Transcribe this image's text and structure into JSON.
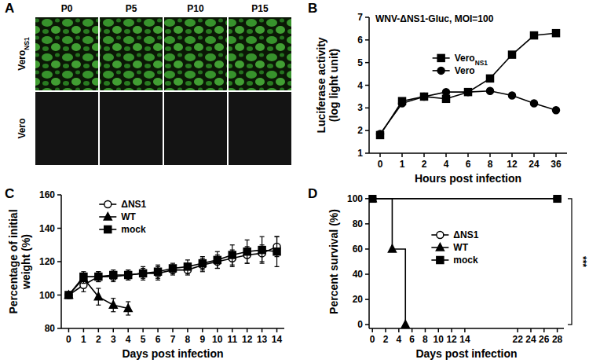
{
  "image_panel": {
    "panel": "A",
    "columns": [
      "P0",
      "P5",
      "P10",
      "P15"
    ],
    "rows": [
      {
        "label": "VeroNS1",
        "subscript": "NS1"
      },
      {
        "label": "Vero"
      }
    ]
  },
  "chart_data": [
    {
      "type": "line",
      "panel": "B",
      "title": "WNV-ΔNS1-Gluc, MOI=100",
      "x_label": "Hours post infection",
      "y_label": "Luciferase activity\n(log light unit)",
      "categories": [
        "0",
        "1",
        "2",
        "4",
        "6",
        "8",
        "12",
        "24",
        "36"
      ],
      "ylim": [
        1,
        7
      ],
      "yticks": [
        1,
        2,
        3,
        4,
        5,
        6,
        7
      ],
      "legend": "center",
      "series": [
        {
          "name": "VeroNS1",
          "subscript": "NS1",
          "color": "#000000",
          "marker": "square",
          "line_style": "solid",
          "values": [
            1.8,
            3.3,
            3.5,
            3.4,
            3.7,
            4.3,
            5.35,
            6.2,
            6.3
          ]
        },
        {
          "name": "Vero",
          "color": "#000000",
          "marker": "circle",
          "line_style": "solid",
          "values": [
            1.85,
            3.2,
            3.5,
            3.7,
            3.7,
            3.75,
            3.55,
            3.2,
            2.9
          ]
        }
      ]
    },
    {
      "type": "line",
      "panel": "C",
      "x_label": "Days post infection",
      "y_label": "Percentage of initial\nweight (%)",
      "xlim": [
        -0.5,
        14.5
      ],
      "xticks": [
        0,
        1,
        2,
        3,
        4,
        5,
        6,
        7,
        8,
        9,
        10,
        11,
        12,
        13,
        14
      ],
      "ylim": [
        80,
        160
      ],
      "yticks": [
        80,
        100,
        120,
        140,
        160
      ],
      "legend": "upper left",
      "series": [
        {
          "name": "ΔNS1",
          "color": "#000000",
          "marker": "open_circle",
          "line_style": "solid",
          "x": [
            0,
            1,
            2,
            3,
            4,
            5,
            6,
            7,
            8,
            9,
            10,
            11,
            12,
            13,
            14
          ],
          "values": [
            100,
            106,
            111,
            111,
            112,
            113,
            113,
            115,
            115,
            118,
            120,
            122,
            124,
            125,
            129
          ],
          "errors": [
            1,
            4,
            3,
            3,
            3,
            4,
            4,
            3,
            3,
            4,
            4,
            5,
            5,
            5,
            6
          ]
        },
        {
          "name": "WT",
          "color": "#000000",
          "marker": "triangle",
          "line_style": "solid",
          "x": [
            0,
            1,
            2,
            3,
            4
          ],
          "values": [
            100,
            110,
            99,
            94,
            92
          ],
          "errors": [
            1,
            3,
            5,
            4,
            4
          ]
        },
        {
          "name": "mock",
          "color": "#000000",
          "marker": "square",
          "line_style": "solid",
          "x": [
            0,
            1,
            2,
            3,
            4,
            5,
            6,
            7,
            8,
            9,
            10,
            11,
            12,
            13,
            14
          ],
          "values": [
            100,
            111,
            111,
            112,
            112,
            113,
            114,
            116,
            117,
            119,
            121,
            124,
            126,
            127,
            126
          ],
          "errors": [
            1,
            3,
            3,
            3,
            3,
            3,
            4,
            3,
            4,
            4,
            5,
            6,
            7,
            8,
            9
          ]
        }
      ]
    },
    {
      "type": "line",
      "panel": "D",
      "x_label": "Days post infection",
      "y_label": "Percent survival (%)",
      "xlim": [
        -0.5,
        29
      ],
      "xticks": [
        0,
        2,
        4,
        6,
        8,
        10,
        12,
        14,
        22,
        24,
        26,
        28
      ],
      "ylim": [
        -3,
        103
      ],
      "yticks": [
        0,
        20,
        40,
        60,
        80,
        100
      ],
      "legend": "center",
      "annotations": [
        "***"
      ],
      "series": [
        {
          "name": "ΔNS1",
          "color": "#000000",
          "marker": "open_circle",
          "line_style": "step",
          "x": [
            0,
            28
          ],
          "values": [
            100,
            100
          ]
        },
        {
          "name": "WT",
          "color": "#000000",
          "marker": "triangle",
          "line_style": "step",
          "x": [
            0,
            3,
            5
          ],
          "values": [
            100,
            60,
            0
          ]
        },
        {
          "name": "mock",
          "color": "#000000",
          "marker": "square",
          "line_style": "step",
          "x": [
            0,
            28
          ],
          "values": [
            100,
            100
          ]
        }
      ]
    }
  ]
}
